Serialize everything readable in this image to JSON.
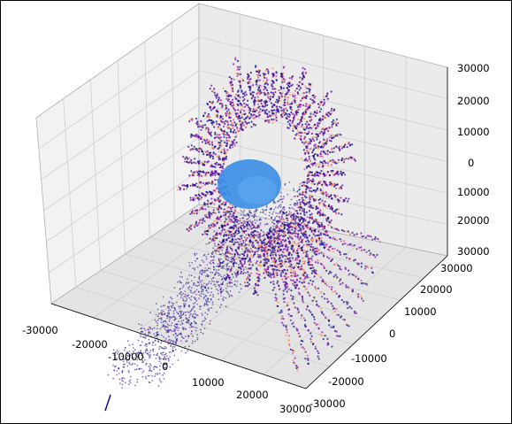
{
  "chart_data": {
    "type": "scatter",
    "title": "",
    "xlabel": "",
    "ylabel": "",
    "zlabel": "",
    "axes3d": true,
    "grid": true,
    "x_ticks": [
      "-30000",
      "-20000",
      "-10000",
      "0",
      "10000",
      "20000",
      "30000"
    ],
    "y_ticks": [
      "-30000",
      "-20000",
      "-10000",
      "0",
      "10000",
      "20000",
      "30000"
    ],
    "z_ticks": [
      "30000",
      "20000",
      "10000",
      "0",
      "10000",
      "20000",
      "30000"
    ],
    "xlim": [
      -30000,
      30000
    ],
    "ylim": [
      -30000,
      30000
    ],
    "zlim": [
      -30000,
      30000
    ],
    "colormap": "plasma",
    "colors": {
      "low": "#0d0887",
      "mid": "#7e03a8",
      "high": "#cc4778",
      "peak": "#f89540",
      "sphere": "#3a8ee6",
      "pane": "#f2f2f2",
      "grid": "#cfcfcf"
    },
    "series": [
      {
        "description_free": true,
        "values_note": ""
      }
    ]
  }
}
